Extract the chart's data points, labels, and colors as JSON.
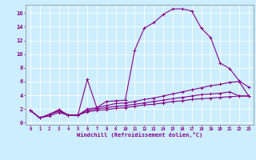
{
  "xlabel": "Windchill (Refroidissement éolien,°C)",
  "bg_color": "#cceeff",
  "grid_color": "#ffffff",
  "line_color": "#880088",
  "x_ticks": [
    0,
    1,
    2,
    3,
    4,
    5,
    6,
    7,
    8,
    9,
    10,
    11,
    12,
    13,
    14,
    15,
    16,
    17,
    18,
    19,
    20,
    21,
    22,
    23
  ],
  "y_ticks": [
    0,
    2,
    4,
    6,
    8,
    10,
    12,
    14,
    16
  ],
  "xlim": [
    -0.5,
    23.5
  ],
  "ylim": [
    -0.3,
    17.2
  ],
  "series": [
    {
      "x": [
        0,
        1,
        2,
        3,
        4,
        5,
        6,
        7,
        8,
        9,
        10,
        11,
        12,
        13,
        14,
        15,
        16,
        17,
        18,
        19,
        20,
        21,
        22,
        23
      ],
      "y": [
        1.8,
        0.7,
        1.2,
        1.9,
        1.1,
        1.1,
        6.3,
        2.2,
        3.1,
        3.2,
        3.3,
        10.6,
        13.8,
        14.6,
        15.8,
        16.6,
        16.6,
        16.3,
        13.8,
        12.4,
        8.7,
        7.9,
        6.1,
        5.2
      ]
    },
    {
      "x": [
        0,
        1,
        2,
        3,
        4,
        5,
        6,
        7,
        8,
        9,
        10,
        11,
        12,
        13,
        14,
        15,
        16,
        17,
        18,
        19,
        20,
        21,
        22,
        23
      ],
      "y": [
        1.8,
        0.7,
        1.2,
        1.9,
        1.1,
        1.1,
        2.0,
        2.2,
        2.5,
        2.8,
        2.9,
        3.1,
        3.4,
        3.6,
        3.9,
        4.2,
        4.5,
        4.8,
        5.1,
        5.4,
        5.6,
        5.9,
        6.0,
        3.9
      ]
    },
    {
      "x": [
        0,
        1,
        2,
        3,
        4,
        5,
        6,
        7,
        8,
        9,
        10,
        11,
        12,
        13,
        14,
        15,
        16,
        17,
        18,
        19,
        20,
        21,
        22,
        23
      ],
      "y": [
        1.8,
        0.7,
        1.2,
        1.7,
        1.1,
        1.1,
        1.8,
        2.0,
        2.2,
        2.4,
        2.5,
        2.7,
        2.9,
        3.1,
        3.3,
        3.5,
        3.7,
        3.9,
        4.1,
        4.2,
        4.3,
        4.5,
        3.9,
        3.9
      ]
    },
    {
      "x": [
        0,
        1,
        2,
        3,
        4,
        5,
        6,
        7,
        8,
        9,
        10,
        11,
        12,
        13,
        14,
        15,
        16,
        17,
        18,
        19,
        20,
        21,
        22,
        23
      ],
      "y": [
        1.8,
        0.7,
        1.0,
        1.5,
        1.1,
        1.1,
        1.6,
        1.8,
        1.9,
        2.1,
        2.2,
        2.4,
        2.6,
        2.7,
        2.9,
        3.1,
        3.2,
        3.4,
        3.5,
        3.6,
        3.7,
        3.8,
        3.9,
        3.9
      ]
    }
  ],
  "marker": "+",
  "markersize": 3,
  "linewidth": 0.8
}
